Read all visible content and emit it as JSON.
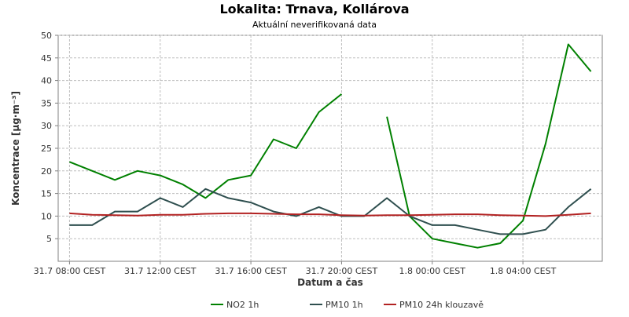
{
  "chart_data": {
    "type": "line",
    "title": "Lokalita: Trnava, Kollárova",
    "subtitle": "Aktuální neverifikovaná data",
    "xlabel": "Datum a čas",
    "ylabel": "Koncentrace [µg·m⁻³]",
    "ylim": [
      0,
      50
    ],
    "y_ticks": [
      5,
      10,
      15,
      20,
      25,
      30,
      35,
      40,
      45,
      50
    ],
    "x_ticks": [
      {
        "hour": 0,
        "label": "31.7 08:00 CEST"
      },
      {
        "hour": 4,
        "label": "31.7 12:00 CEST"
      },
      {
        "hour": 8,
        "label": "31.7 16:00 CEST"
      },
      {
        "hour": 12,
        "label": "31.7 20:00 CEST"
      },
      {
        "hour": 16,
        "label": "1.8 00:00 CEST"
      },
      {
        "hour": 20,
        "label": "1.8 04:00 CEST"
      }
    ],
    "x_start": "2025-07-31 08:00 CEST",
    "x_range_hours": [
      -0.5,
      23.5
    ],
    "grid": true,
    "legend_position": "bottom",
    "series": [
      {
        "name": "NO2 1h",
        "color": "#008000",
        "x": [
          0,
          1,
          2,
          3,
          4,
          5,
          6,
          7,
          8,
          9,
          10,
          11,
          12,
          13,
          14,
          15,
          16,
          17,
          18,
          19,
          20,
          21,
          22,
          23
        ],
        "values": [
          22,
          20,
          18,
          20,
          19,
          17,
          14,
          18,
          19,
          27,
          25,
          33,
          37,
          null,
          32,
          10,
          5,
          4,
          3,
          4,
          9,
          26,
          48,
          42
        ]
      },
      {
        "name": "PM10 1h",
        "color": "#2f4f4f",
        "x": [
          0,
          1,
          2,
          3,
          4,
          5,
          6,
          7,
          8,
          9,
          10,
          11,
          12,
          13,
          14,
          15,
          16,
          17,
          18,
          19,
          20,
          21,
          22,
          23
        ],
        "values": [
          8,
          8,
          11,
          11,
          14,
          12,
          16,
          14,
          13,
          11,
          10,
          12,
          10,
          10,
          14,
          10,
          8,
          8,
          7,
          6,
          6,
          7,
          12,
          16
        ]
      },
      {
        "name": "PM10 24h klouzavě",
        "color": "#b22222",
        "x": [
          0,
          1,
          2,
          3,
          4,
          5,
          6,
          7,
          8,
          9,
          10,
          11,
          12,
          13,
          14,
          15,
          16,
          17,
          18,
          19,
          20,
          21,
          22,
          23
        ],
        "values": [
          10.6,
          10.3,
          10.2,
          10.1,
          10.3,
          10.3,
          10.5,
          10.6,
          10.6,
          10.5,
          10.4,
          10.4,
          10.2,
          10.1,
          10.2,
          10.2,
          10.3,
          10.4,
          10.4,
          10.2,
          10.1,
          10.0,
          10.3,
          10.6
        ]
      }
    ]
  }
}
